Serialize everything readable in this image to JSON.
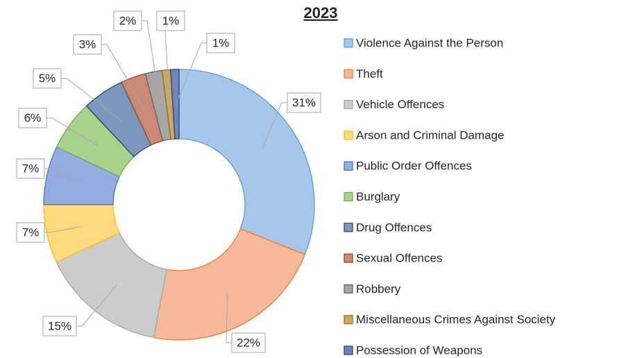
{
  "chart_data": {
    "type": "donut",
    "title": "2023",
    "categories": [
      "Violence Against the Person",
      "Theft",
      "Vehicle Offences",
      "Arson and Criminal Damage",
      "Public Order Offences",
      "Burglary",
      "Drug Offences",
      "Sexual Offences",
      "Robbery",
      "Miscellaneous Crimes Against Society",
      "Possession of Weapons"
    ],
    "values": [
      31,
      22,
      15,
      7,
      7,
      6,
      5,
      3,
      2,
      1,
      1
    ],
    "value_labels": [
      "31%",
      "22%",
      "15%",
      "7%",
      "7%",
      "6%",
      "5%",
      "3%",
      "2%",
      "1%",
      "1%"
    ],
    "colors": [
      "#a7c7ea",
      "#f6b99b",
      "#cccccc",
      "#ffdb7f",
      "#94acdf",
      "#a9d18e",
      "#7d97bf",
      "#c98a78",
      "#a6a6a6",
      "#c9a967",
      "#6f86b9"
    ],
    "legend": "right"
  }
}
